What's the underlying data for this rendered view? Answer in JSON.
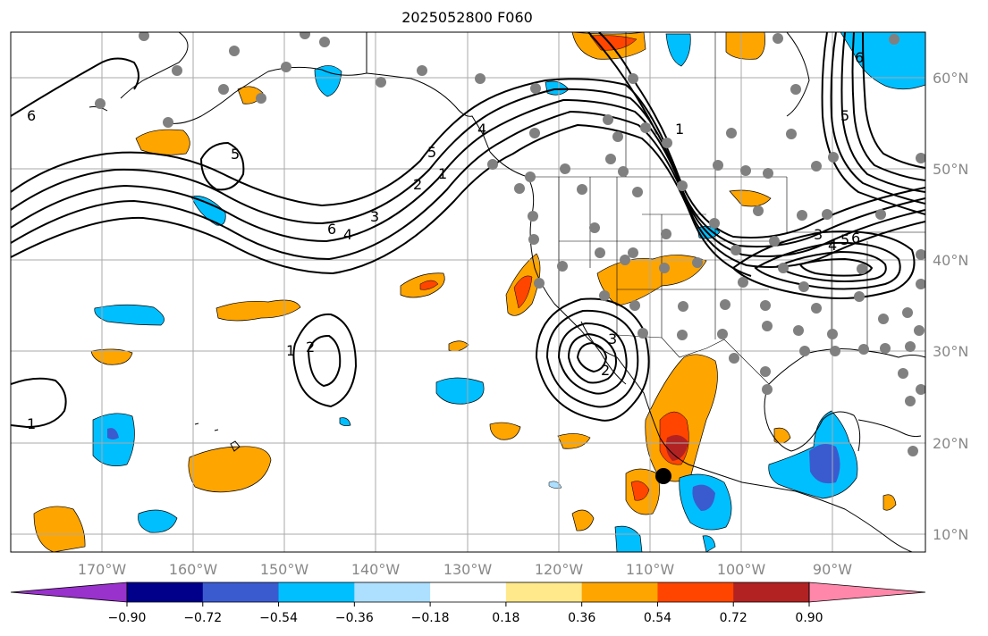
{
  "title": "2025052800 F060",
  "map": {
    "lon_ticks": [
      "170°W",
      "160°W",
      "150°W",
      "140°W",
      "130°W",
      "120°W",
      "110°W",
      "100°W",
      "90°W"
    ],
    "lat_ticks": [
      "60°N",
      "50°N",
      "40°N",
      "30°N",
      "20°N",
      "10°N"
    ],
    "contour_labels": [
      "6",
      "5",
      "6",
      "5",
      "4",
      "3",
      "2",
      "1",
      "1",
      "2",
      "1",
      "2",
      "3",
      "4",
      "5",
      "6",
      "1",
      "6",
      "5",
      "4",
      "3"
    ]
  },
  "colorbar": {
    "labels": [
      "−0.90",
      "−0.72",
      "−0.54",
      "−0.36",
      "−0.18",
      "0.18",
      "0.36",
      "0.54",
      "0.72",
      "0.90"
    ],
    "colors": [
      "#9932CC",
      "#00008B",
      "#3A5BD0",
      "#00BFFF",
      "#ADDFFF",
      "#FFFFFF",
      "#FFE98A",
      "#FFA500",
      "#FF4500",
      "#B22222",
      "#FF88AA"
    ]
  }
}
